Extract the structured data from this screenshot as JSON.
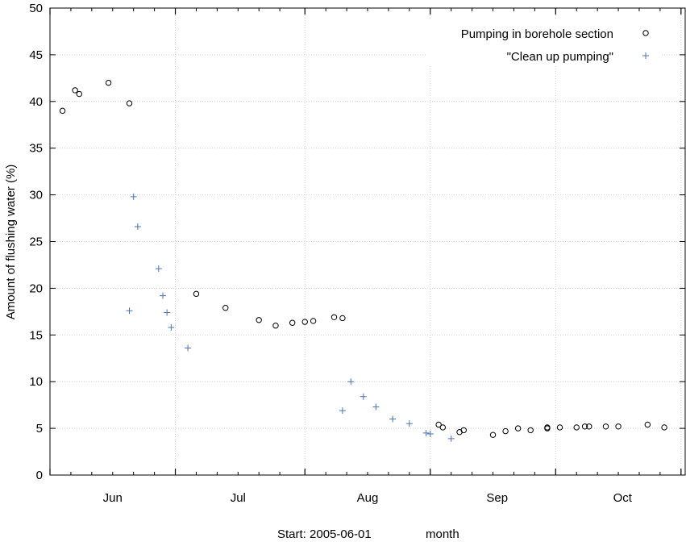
{
  "chart_data": {
    "type": "scatter",
    "ylabel": "Amount of flushing water (%)",
    "start_label": "Start: 2005-06-01",
    "xlabel": "month",
    "ylim": [
      0,
      50
    ],
    "y_ticks": [
      0,
      5,
      10,
      15,
      20,
      25,
      30,
      35,
      40,
      45,
      50
    ],
    "xlim": [
      "2005-06-01",
      "2005-10-31"
    ],
    "month_labels": [
      {
        "label": "Jun",
        "date": "2005-06-16"
      },
      {
        "label": "Jul",
        "date": "2005-07-16"
      },
      {
        "label": "Aug",
        "date": "2005-08-16"
      },
      {
        "label": "Sep",
        "date": "2005-09-16"
      },
      {
        "label": "Oct",
        "date": "2005-10-16"
      }
    ],
    "major_tick_dates": [
      "2005-06-01",
      "2005-07-01",
      "2005-08-01",
      "2005-08-31",
      "2005-09-30",
      "2005-10-30"
    ],
    "minor_tick_dates": [
      "2005-06-06",
      "2005-06-11",
      "2005-06-16",
      "2005-06-21",
      "2005-06-26",
      "2005-07-06",
      "2005-07-11",
      "2005-07-16",
      "2005-07-21",
      "2005-07-26",
      "2005-08-06",
      "2005-08-11",
      "2005-08-16",
      "2005-08-21",
      "2005-08-26",
      "2005-09-05",
      "2005-09-10",
      "2005-09-15",
      "2005-09-20",
      "2005-09-25",
      "2005-10-05",
      "2005-10-10",
      "2005-10-15",
      "2005-10-20",
      "2005-10-25"
    ],
    "grid": true,
    "legend_position": "top-right",
    "series": [
      {
        "name": "Pumping in borehole section",
        "marker": "circle",
        "color": "#000000",
        "points": [
          {
            "x": "2005-06-04",
            "y": 39.0
          },
          {
            "x": "2005-06-07",
            "y": 41.2
          },
          {
            "x": "2005-06-08",
            "y": 40.8
          },
          {
            "x": "2005-06-15",
            "y": 42.0
          },
          {
            "x": "2005-06-20",
            "y": 39.8
          },
          {
            "x": "2005-07-06",
            "y": 19.4
          },
          {
            "x": "2005-07-13",
            "y": 17.9
          },
          {
            "x": "2005-07-21",
            "y": 16.6
          },
          {
            "x": "2005-07-25",
            "y": 16.0
          },
          {
            "x": "2005-07-29",
            "y": 16.3
          },
          {
            "x": "2005-08-01",
            "y": 16.4
          },
          {
            "x": "2005-08-03",
            "y": 16.5
          },
          {
            "x": "2005-08-08",
            "y": 16.9
          },
          {
            "x": "2005-08-10",
            "y": 16.8
          },
          {
            "x": "2005-09-02",
            "y": 5.4
          },
          {
            "x": "2005-09-03",
            "y": 5.1
          },
          {
            "x": "2005-09-07",
            "y": 4.6
          },
          {
            "x": "2005-09-08",
            "y": 4.8
          },
          {
            "x": "2005-09-15",
            "y": 4.3
          },
          {
            "x": "2005-09-18",
            "y": 4.7
          },
          {
            "x": "2005-09-21",
            "y": 5.0
          },
          {
            "x": "2005-09-24",
            "y": 4.8
          },
          {
            "x": "2005-09-28",
            "y": 5.0
          },
          {
            "x": "2005-09-28",
            "y": 5.1
          },
          {
            "x": "2005-10-01",
            "y": 5.1
          },
          {
            "x": "2005-10-05",
            "y": 5.1
          },
          {
            "x": "2005-10-07",
            "y": 5.2
          },
          {
            "x": "2005-10-08",
            "y": 5.2
          },
          {
            "x": "2005-10-12",
            "y": 5.2
          },
          {
            "x": "2005-10-15",
            "y": 5.2
          },
          {
            "x": "2005-10-22",
            "y": 5.4
          },
          {
            "x": "2005-10-26",
            "y": 5.1
          }
        ]
      },
      {
        "name": "\"Clean up pumping\"",
        "marker": "plus",
        "color": "#4a73b5",
        "points": [
          {
            "x": "2005-06-20",
            "y": 17.6
          },
          {
            "x": "2005-06-21",
            "y": 29.8
          },
          {
            "x": "2005-06-22",
            "y": 26.6
          },
          {
            "x": "2005-06-27",
            "y": 22.1
          },
          {
            "x": "2005-06-28",
            "y": 19.2
          },
          {
            "x": "2005-06-29",
            "y": 17.4
          },
          {
            "x": "2005-06-30",
            "y": 15.8
          },
          {
            "x": "2005-07-04",
            "y": 13.6
          },
          {
            "x": "2005-08-10",
            "y": 6.9
          },
          {
            "x": "2005-08-12",
            "y": 10.0
          },
          {
            "x": "2005-08-15",
            "y": 8.4
          },
          {
            "x": "2005-08-18",
            "y": 7.3
          },
          {
            "x": "2005-08-22",
            "y": 6.0
          },
          {
            "x": "2005-08-26",
            "y": 5.5
          },
          {
            "x": "2005-08-30",
            "y": 4.5
          },
          {
            "x": "2005-08-31",
            "y": 4.4
          },
          {
            "x": "2005-09-05",
            "y": 3.9
          }
        ]
      }
    ]
  }
}
